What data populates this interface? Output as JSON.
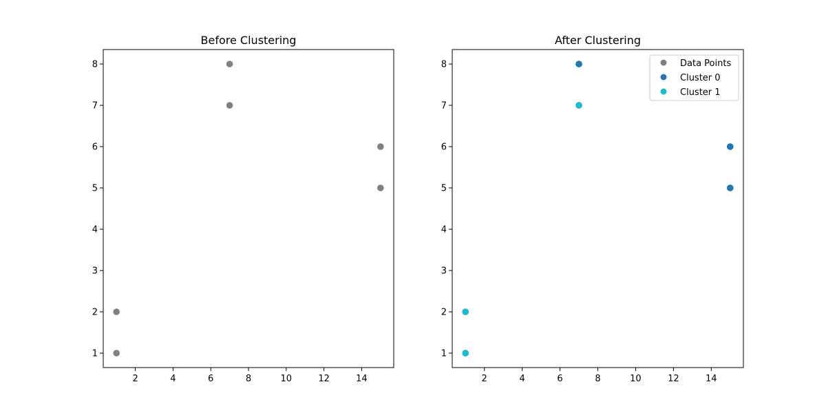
{
  "chart_data": [
    {
      "type": "scatter",
      "title": "Before Clustering",
      "xlim": [
        0.3,
        15.7
      ],
      "ylim": [
        0.65,
        8.35
      ],
      "xticks": [
        2,
        4,
        6,
        8,
        10,
        12,
        14
      ],
      "yticks": [
        1,
        2,
        3,
        4,
        5,
        6,
        7,
        8
      ],
      "grid": false,
      "series": [
        {
          "color": "#808080",
          "points": [
            [
              1,
              1
            ],
            [
              1,
              2
            ],
            [
              7,
              7
            ],
            [
              7,
              8
            ],
            [
              15,
              5
            ],
            [
              15,
              6
            ]
          ]
        }
      ]
    },
    {
      "type": "scatter",
      "title": "After Clustering",
      "xlim": [
        0.3,
        15.7
      ],
      "ylim": [
        0.65,
        8.35
      ],
      "xticks": [
        2,
        4,
        6,
        8,
        10,
        12,
        14
      ],
      "yticks": [
        1,
        2,
        3,
        4,
        5,
        6,
        7,
        8
      ],
      "grid": false,
      "legend": "top-right",
      "series": [
        {
          "name": "Data Points",
          "color": "#808080",
          "points": [
            [
              1,
              1
            ],
            [
              1,
              2
            ],
            [
              7,
              7
            ],
            [
              7,
              8
            ],
            [
              15,
              5
            ],
            [
              15,
              6
            ]
          ]
        },
        {
          "name": "Cluster 0",
          "color": "#1f77b4",
          "points": [
            [
              7,
              8
            ],
            [
              15,
              5
            ],
            [
              15,
              6
            ]
          ]
        },
        {
          "name": "Cluster 1",
          "color": "#17becf",
          "points": [
            [
              1,
              1
            ],
            [
              1,
              2
            ],
            [
              7,
              7
            ]
          ]
        }
      ]
    }
  ]
}
